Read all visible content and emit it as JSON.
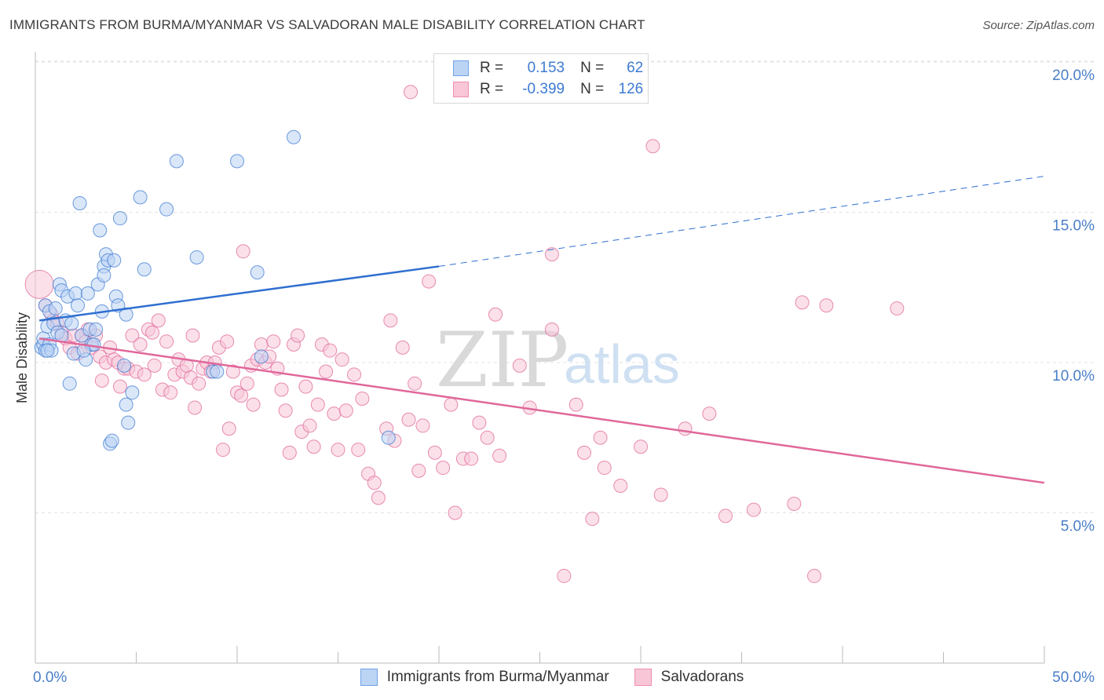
{
  "header": {
    "title": "IMMIGRANTS FROM BURMA/MYANMAR VS SALVADORAN MALE DISABILITY CORRELATION CHART",
    "source": "Source: ZipAtlas.com"
  },
  "watermark": {
    "zip": "ZIP",
    "atlas": "atlas"
  },
  "legend": {
    "r_label": "R =",
    "n_label": "N =",
    "rows": [
      {
        "r": "0.153",
        "n": "62",
        "color": "#6fa3e6",
        "fill": "#bcd4f4"
      },
      {
        "r": "-0.399",
        "n": "126",
        "color": "#ee8fb0",
        "fill": "#f8c6d7"
      }
    ]
  },
  "chart_data": {
    "type": "scatter",
    "title": "IMMIGRANTS FROM BURMA/MYANMAR VS SALVADORAN MALE DISABILITY CORRELATION CHART",
    "xlabel": "",
    "ylabel": "Male Disability",
    "xlim": [
      0,
      50
    ],
    "ylim": [
      0,
      21
    ],
    "x_tick_labels": [
      "0.0%",
      "50.0%"
    ],
    "y_ticks": [
      5,
      10,
      15,
      20
    ],
    "y_tick_labels": [
      "5.0%",
      "10.0%",
      "15.0%",
      "20.0%"
    ],
    "grid": true,
    "legend_position": "top-center",
    "series": [
      {
        "name": "Immigrants from Burma/Myanmar",
        "color": "#3d7bd2",
        "fill": "#bcd4f4",
        "r": 0.153,
        "n": 62,
        "trend": {
          "x": [
            0.2,
            20
          ],
          "y": [
            11.4,
            13.2
          ],
          "dashed_to": [
            50,
            16.2
          ]
        },
        "points": [
          [
            0.3,
            10.5
          ],
          [
            0.4,
            10.6
          ],
          [
            0.4,
            10.8
          ],
          [
            0.5,
            11.9
          ],
          [
            0.5,
            10.4
          ],
          [
            0.6,
            11.2
          ],
          [
            0.7,
            11.7
          ],
          [
            0.7,
            10.6
          ],
          [
            0.8,
            10.4
          ],
          [
            0.9,
            11.3
          ],
          [
            1.0,
            11.8
          ],
          [
            1.1,
            11.0
          ],
          [
            1.2,
            12.6
          ],
          [
            1.3,
            12.4
          ],
          [
            1.3,
            10.9
          ],
          [
            1.5,
            11.4
          ],
          [
            1.6,
            12.2
          ],
          [
            1.7,
            9.3
          ],
          [
            1.8,
            11.3
          ],
          [
            1.9,
            10.3
          ],
          [
            2.0,
            12.3
          ],
          [
            2.1,
            11.9
          ],
          [
            2.2,
            15.3
          ],
          [
            2.3,
            10.9
          ],
          [
            2.5,
            10.1
          ],
          [
            2.6,
            12.3
          ],
          [
            2.7,
            11.1
          ],
          [
            2.8,
            10.6
          ],
          [
            2.9,
            10.6
          ],
          [
            3.0,
            11.1
          ],
          [
            3.1,
            12.6
          ],
          [
            3.2,
            14.4
          ],
          [
            3.3,
            11.7
          ],
          [
            3.4,
            13.2
          ],
          [
            3.4,
            12.9
          ],
          [
            3.5,
            13.6
          ],
          [
            3.6,
            13.4
          ],
          [
            3.7,
            7.3
          ],
          [
            3.8,
            7.4
          ],
          [
            3.9,
            13.4
          ],
          [
            4.0,
            12.2
          ],
          [
            4.1,
            11.9
          ],
          [
            4.2,
            14.8
          ],
          [
            4.4,
            9.9
          ],
          [
            4.5,
            11.6
          ],
          [
            4.5,
            8.6
          ],
          [
            4.6,
            8.0
          ],
          [
            4.8,
            9.0
          ],
          [
            5.2,
            15.5
          ],
          [
            5.4,
            13.1
          ],
          [
            6.5,
            15.1
          ],
          [
            7.0,
            16.7
          ],
          [
            8.0,
            13.5
          ],
          [
            8.8,
            9.7
          ],
          [
            9.0,
            9.7
          ],
          [
            10.0,
            16.7
          ],
          [
            11.0,
            13.0
          ],
          [
            11.2,
            10.2
          ],
          [
            12.8,
            17.5
          ],
          [
            17.5,
            7.5
          ],
          [
            0.6,
            10.4
          ],
          [
            2.4,
            10.4
          ]
        ]
      },
      {
        "name": "Salvadorans",
        "color": "#e0679a",
        "fill": "#f8c6d7",
        "r": -0.399,
        "n": 126,
        "trend": {
          "x": [
            0.2,
            50
          ],
          "y": [
            10.8,
            6.0
          ]
        },
        "points": [
          [
            0.2,
            12.6
          ],
          [
            0.5,
            11.9
          ],
          [
            0.8,
            11.6
          ],
          [
            0.9,
            11.4
          ],
          [
            1.1,
            11.3
          ],
          [
            1.3,
            11.0
          ],
          [
            1.5,
            10.8
          ],
          [
            1.7,
            10.5
          ],
          [
            1.9,
            10.9
          ],
          [
            2.1,
            10.3
          ],
          [
            2.3,
            10.9
          ],
          [
            2.5,
            10.7
          ],
          [
            2.6,
            11.1
          ],
          [
            2.8,
            10.5
          ],
          [
            3.0,
            10.9
          ],
          [
            3.2,
            10.2
          ],
          [
            3.5,
            10.0
          ],
          [
            3.7,
            10.5
          ],
          [
            3.9,
            10.1
          ],
          [
            4.1,
            10.0
          ],
          [
            4.2,
            9.2
          ],
          [
            4.4,
            9.8
          ],
          [
            4.6,
            9.8
          ],
          [
            4.8,
            10.9
          ],
          [
            5.0,
            9.7
          ],
          [
            5.2,
            10.6
          ],
          [
            5.4,
            9.6
          ],
          [
            5.6,
            11.1
          ],
          [
            5.9,
            9.9
          ],
          [
            6.1,
            11.4
          ],
          [
            6.3,
            9.1
          ],
          [
            6.5,
            10.7
          ],
          [
            6.7,
            9.0
          ],
          [
            6.9,
            9.6
          ],
          [
            7.1,
            10.1
          ],
          [
            7.3,
            9.7
          ],
          [
            7.5,
            9.9
          ],
          [
            7.7,
            9.5
          ],
          [
            7.8,
            10.9
          ],
          [
            7.9,
            8.5
          ],
          [
            8.1,
            9.3
          ],
          [
            8.3,
            9.8
          ],
          [
            8.5,
            10.0
          ],
          [
            8.7,
            9.7
          ],
          [
            8.9,
            10.0
          ],
          [
            9.1,
            10.5
          ],
          [
            9.3,
            7.1
          ],
          [
            9.5,
            10.7
          ],
          [
            9.6,
            7.8
          ],
          [
            9.8,
            9.7
          ],
          [
            10.0,
            9.0
          ],
          [
            10.2,
            8.9
          ],
          [
            10.3,
            13.7
          ],
          [
            10.5,
            9.3
          ],
          [
            10.7,
            9.9
          ],
          [
            10.8,
            8.6
          ],
          [
            11.0,
            10.1
          ],
          [
            11.2,
            10.6
          ],
          [
            11.4,
            10.0
          ],
          [
            11.6,
            10.2
          ],
          [
            11.8,
            10.7
          ],
          [
            12.0,
            9.8
          ],
          [
            12.2,
            9.1
          ],
          [
            12.4,
            8.4
          ],
          [
            12.6,
            7.0
          ],
          [
            12.8,
            10.6
          ],
          [
            13.0,
            10.9
          ],
          [
            13.2,
            7.7
          ],
          [
            13.4,
            9.2
          ],
          [
            13.6,
            7.9
          ],
          [
            13.8,
            7.2
          ],
          [
            14.0,
            8.6
          ],
          [
            14.2,
            10.6
          ],
          [
            14.4,
            9.7
          ],
          [
            14.6,
            10.4
          ],
          [
            14.8,
            8.3
          ],
          [
            15.0,
            7.1
          ],
          [
            15.2,
            10.1
          ],
          [
            15.4,
            8.4
          ],
          [
            15.8,
            9.6
          ],
          [
            16.0,
            7.1
          ],
          [
            16.2,
            8.8
          ],
          [
            16.5,
            6.3
          ],
          [
            16.8,
            6.0
          ],
          [
            17.0,
            5.5
          ],
          [
            17.4,
            7.8
          ],
          [
            17.6,
            11.4
          ],
          [
            17.8,
            7.4
          ],
          [
            18.2,
            10.5
          ],
          [
            18.5,
            8.1
          ],
          [
            18.8,
            9.3
          ],
          [
            19.0,
            6.4
          ],
          [
            19.2,
            7.9
          ],
          [
            19.5,
            12.7
          ],
          [
            19.8,
            7.0
          ],
          [
            20.2,
            6.5
          ],
          [
            20.6,
            8.6
          ],
          [
            20.8,
            5.0
          ],
          [
            21.2,
            6.8
          ],
          [
            21.6,
            6.8
          ],
          [
            22.0,
            8.0
          ],
          [
            22.4,
            7.5
          ],
          [
            22.8,
            11.6
          ],
          [
            23.0,
            6.9
          ],
          [
            24.0,
            9.9
          ],
          [
            24.5,
            8.5
          ],
          [
            25.6,
            13.6
          ],
          [
            25.6,
            11.1
          ],
          [
            26.2,
            2.9
          ],
          [
            26.8,
            8.6
          ],
          [
            27.2,
            7.0
          ],
          [
            27.6,
            4.8
          ],
          [
            28.0,
            7.5
          ],
          [
            28.2,
            6.5
          ],
          [
            29.0,
            5.9
          ],
          [
            30.0,
            7.2
          ],
          [
            30.6,
            17.2
          ],
          [
            31.0,
            5.6
          ],
          [
            32.2,
            7.8
          ],
          [
            33.4,
            8.3
          ],
          [
            34.2,
            4.9
          ],
          [
            35.6,
            5.1
          ],
          [
            37.6,
            5.3
          ],
          [
            38.0,
            12.0
          ],
          [
            38.6,
            2.9
          ],
          [
            39.2,
            11.9
          ],
          [
            42.7,
            11.8
          ],
          [
            18.6,
            19.0
          ],
          [
            3.3,
            9.4
          ],
          [
            5.8,
            11.0
          ]
        ]
      }
    ]
  }
}
